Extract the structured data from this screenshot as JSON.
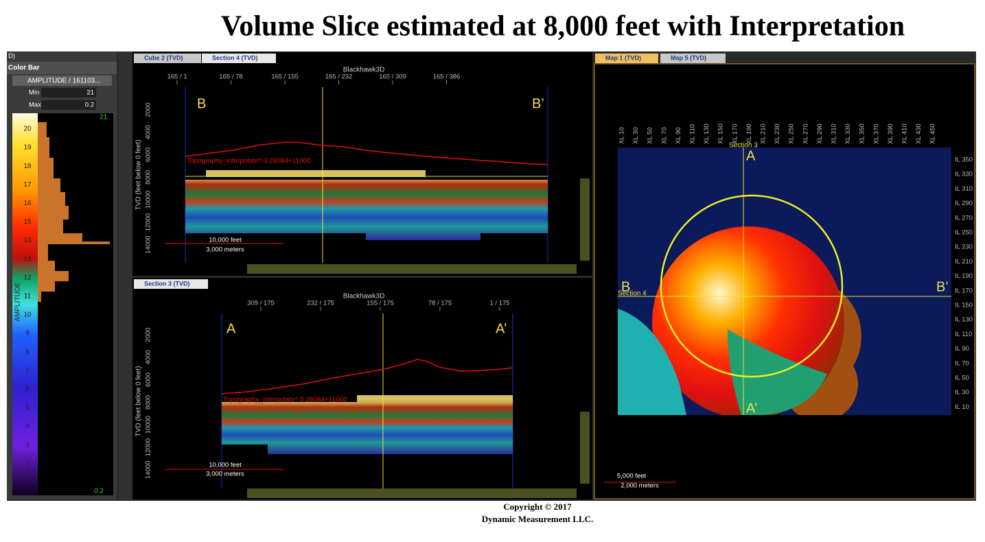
{
  "title": "Volume Slice estimated at 8,000 feet with Interpretation",
  "colorbar": {
    "panel_label": "D)",
    "title": "Color Bar",
    "attribute": "AMPLITUDE / 161103...",
    "min_label": "Min",
    "min": "21",
    "max_label": "Max",
    "max": "0.2",
    "top_value": "21",
    "bottom_value": "0.2",
    "axis_label": "AMPLITUDE",
    "ticks": [
      "20",
      "19",
      "18",
      "17",
      "16",
      "15",
      "14",
      "13",
      "12",
      "11",
      "10",
      "9",
      "8",
      "7",
      "6",
      "5",
      "4",
      "3",
      "2",
      "1"
    ]
  },
  "section4": {
    "tabs": [
      "Cube 2 (TVD)",
      "Section 4 (TVD)"
    ],
    "header": "Blackhawk3D",
    "xticks": [
      "165 / 1",
      "165 / 78",
      "165 / 155",
      "165 / 232",
      "165 / 309",
      "165 / 386"
    ],
    "y_label": "TVD (feet below 0 feet)",
    "yticks": [
      "2000",
      "4000",
      "6000",
      "8000",
      "10000",
      "12000",
      "14000"
    ],
    "left": "B",
    "right": "B’",
    "horizon": "Topography_interpolate*-3.28084+11000",
    "scale": [
      "10,000 feet",
      "3,000 meters"
    ]
  },
  "section3": {
    "tabs": [
      "Section 3 (TVD)"
    ],
    "header": "Blackhawk3D",
    "xticks": [
      "309 / 175",
      "232 / 175",
      "155 / 175",
      "78 / 175",
      "1 / 175"
    ],
    "y_label": "TVD (feet below 0 feet)",
    "yticks": [
      "2000",
      "4000",
      "6000",
      "8000",
      "10000",
      "12000",
      "14000"
    ],
    "left": "A",
    "right": "A’",
    "horizon": "Topography_interpolate*-3.28084+11000",
    "scale": [
      "10,000 feet",
      "3,000 meters"
    ]
  },
  "map": {
    "tabs": [
      "Map 1 (TVD)",
      "Map 5 (TVD)"
    ],
    "xl": [
      "XL 10",
      "XL 30",
      "XL 50",
      "XL 70",
      "XL 90",
      "XL 110",
      "XL 130",
      "XL 150",
      "XL 170",
      "XL 190",
      "XL 210",
      "XL 230",
      "XL 250",
      "XL 270",
      "XL 290",
      "XL 310",
      "XL 330",
      "XL 350",
      "XL 370",
      "XL 390",
      "XL 410",
      "XL 430",
      "XL 450"
    ],
    "il": [
      "IL 350",
      "IL 330",
      "IL 310",
      "IL 290",
      "IL 270",
      "IL 250",
      "IL 230",
      "IL 210",
      "IL 190",
      "IL 170",
      "IL 150",
      "IL 130",
      "IL 110",
      "IL 90",
      "IL 70",
      "IL 50",
      "IL 30",
      "IL 10"
    ],
    "section3": "Section 3",
    "section4": "Section 4",
    "a": "A",
    "a_prime": "A’",
    "b": "B",
    "b_prime": "B’",
    "scale": [
      "5,000 feet",
      "2,000 meters"
    ]
  },
  "copyright": [
    "Copyright  © 2017",
    "Dynamic Measurement LLC."
  ]
}
